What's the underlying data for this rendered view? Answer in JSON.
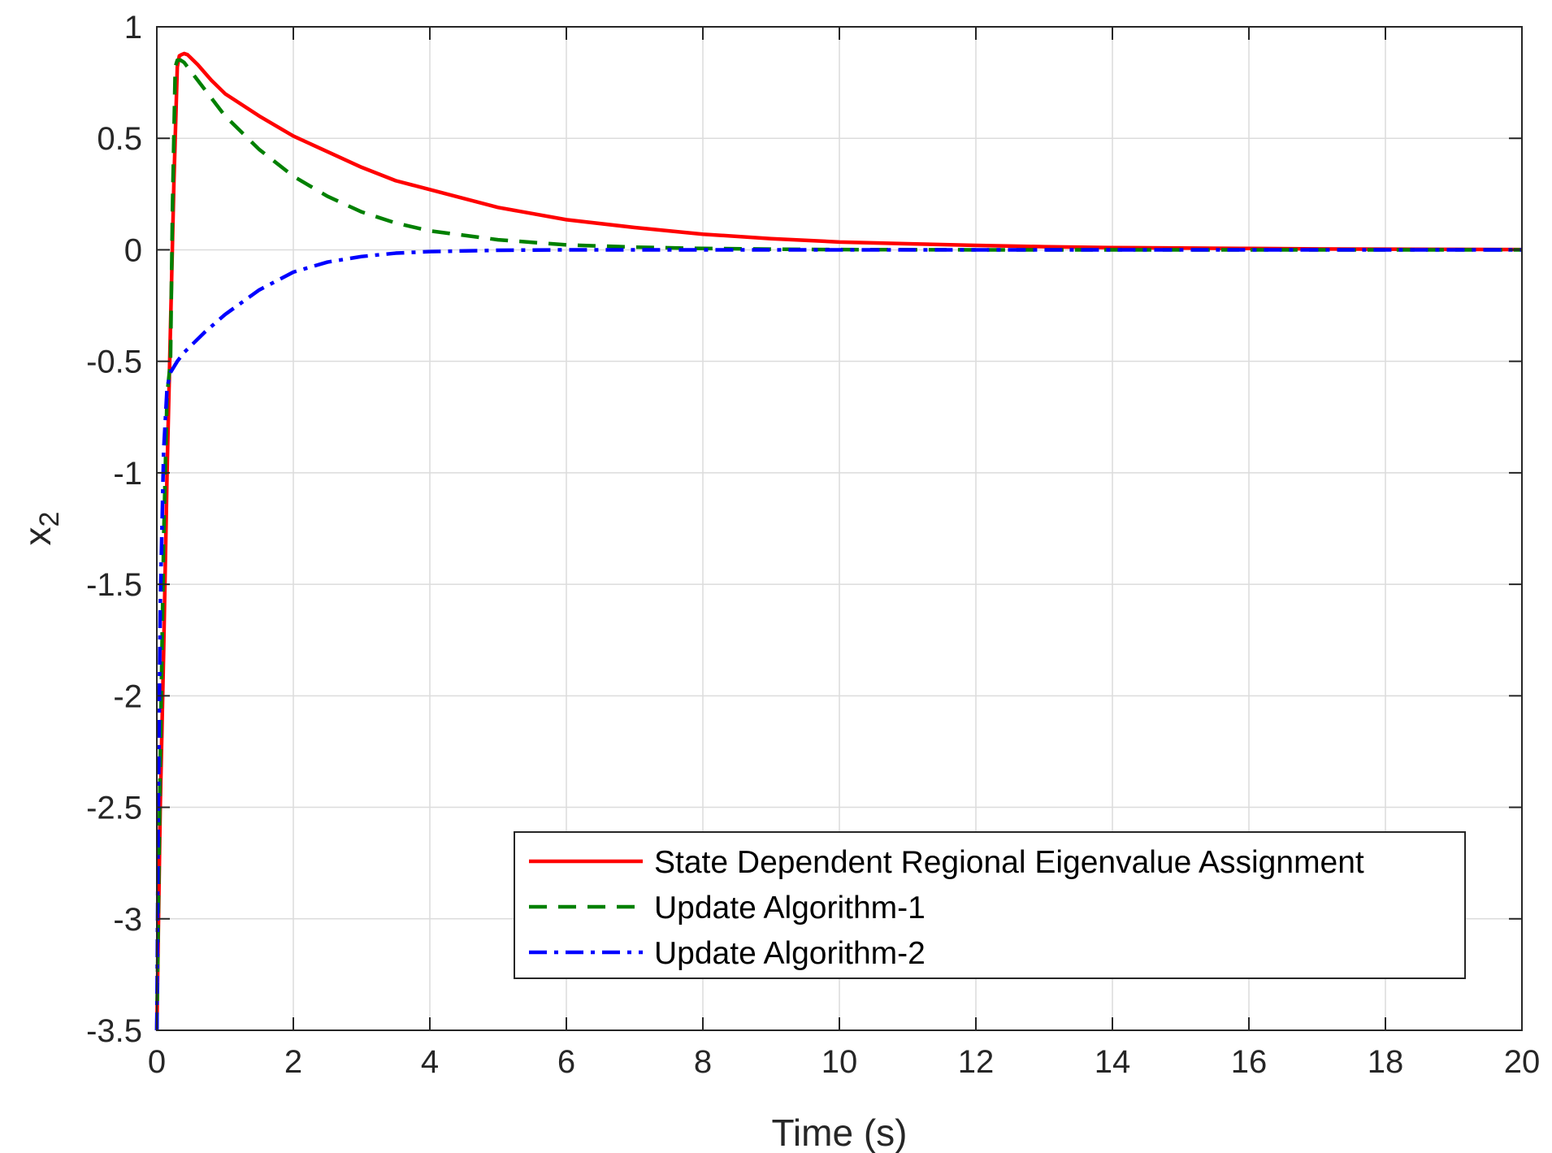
{
  "chart_data": {
    "type": "line",
    "title": "",
    "xlabel": "Time (s)",
    "ylabel_base": "x",
    "ylabel_sub": "2",
    "xlim": [
      0,
      20
    ],
    "ylim": [
      -3.5,
      1
    ],
    "xticks": [
      0,
      2,
      4,
      6,
      8,
      10,
      12,
      14,
      16,
      18,
      20
    ],
    "yticks": [
      1,
      0.5,
      0,
      -0.5,
      -1,
      -1.5,
      -2,
      -2.5,
      -3,
      -3.5
    ],
    "xtick_labels": [
      "0",
      "2",
      "4",
      "6",
      "8",
      "10",
      "12",
      "14",
      "16",
      "18",
      "20"
    ],
    "ytick_labels": [
      "1",
      "0.5",
      "0",
      "-0.5",
      "-1",
      "-1.5",
      "-2",
      "-2.5",
      "-3",
      "-3.5"
    ],
    "grid": true,
    "legend_position": "bottom-right",
    "series": [
      {
        "name": "State Dependent Regional Eigenvalue Assignment",
        "color": "#ff0000",
        "style": "solid",
        "x": [
          0,
          0.05,
          0.1,
          0.15,
          0.2,
          0.25,
          0.3,
          0.33,
          0.36,
          0.4,
          0.45,
          0.5,
          0.6,
          0.8,
          1,
          1.5,
          2,
          2.5,
          3,
          3.5,
          4,
          5,
          6,
          7,
          8,
          9,
          10,
          11,
          12,
          13,
          14,
          15,
          16,
          17,
          18,
          19,
          20
        ],
        "y": [
          -3.5,
          -2.5,
          -1.8,
          -1.0,
          -0.35,
          0.3,
          0.82,
          0.87,
          0.875,
          0.88,
          0.875,
          0.86,
          0.83,
          0.76,
          0.7,
          0.6,
          0.51,
          0.44,
          0.37,
          0.31,
          0.27,
          0.19,
          0.135,
          0.1,
          0.07,
          0.05,
          0.035,
          0.027,
          0.02,
          0.014,
          0.01,
          0.008,
          0.006,
          0.004,
          0.003,
          0.002,
          0.001
        ]
      },
      {
        "name": "Update Algorithm-1",
        "color": "#008000",
        "style": "dashed",
        "x": [
          0,
          0.05,
          0.1,
          0.15,
          0.2,
          0.23,
          0.27,
          0.3,
          0.35,
          0.4,
          0.5,
          0.7,
          1,
          1.5,
          2,
          2.5,
          3,
          3.5,
          4,
          5,
          6,
          7,
          8,
          9,
          10,
          12,
          14,
          16,
          18,
          20
        ],
        "y": [
          -3.5,
          -2.3,
          -1.3,
          -0.65,
          -0.5,
          0.2,
          0.82,
          0.85,
          0.85,
          0.84,
          0.8,
          0.72,
          0.6,
          0.45,
          0.33,
          0.24,
          0.17,
          0.12,
          0.085,
          0.045,
          0.022,
          0.012,
          0.006,
          0.003,
          0.001,
          0.0,
          0.0,
          0.0,
          0.0,
          0.0
        ]
      },
      {
        "name": "Update Algorithm-2",
        "color": "#0000ff",
        "style": "dashdot",
        "x": [
          0,
          0.02,
          0.05,
          0.1,
          0.15,
          0.2,
          0.3,
          0.4,
          0.5,
          0.7,
          1,
          1.5,
          2,
          2.5,
          3,
          3.5,
          4,
          5,
          6,
          8,
          10,
          12,
          14,
          16,
          18,
          20
        ],
        "y": [
          -3.5,
          -2.6,
          -1.6,
          -0.9,
          -0.62,
          -0.55,
          -0.5,
          -0.46,
          -0.43,
          -0.37,
          -0.29,
          -0.18,
          -0.1,
          -0.055,
          -0.03,
          -0.015,
          -0.008,
          -0.002,
          0.0,
          0.0,
          0.0,
          0.0,
          0.0,
          0.0,
          0.0,
          0.0
        ]
      }
    ]
  }
}
